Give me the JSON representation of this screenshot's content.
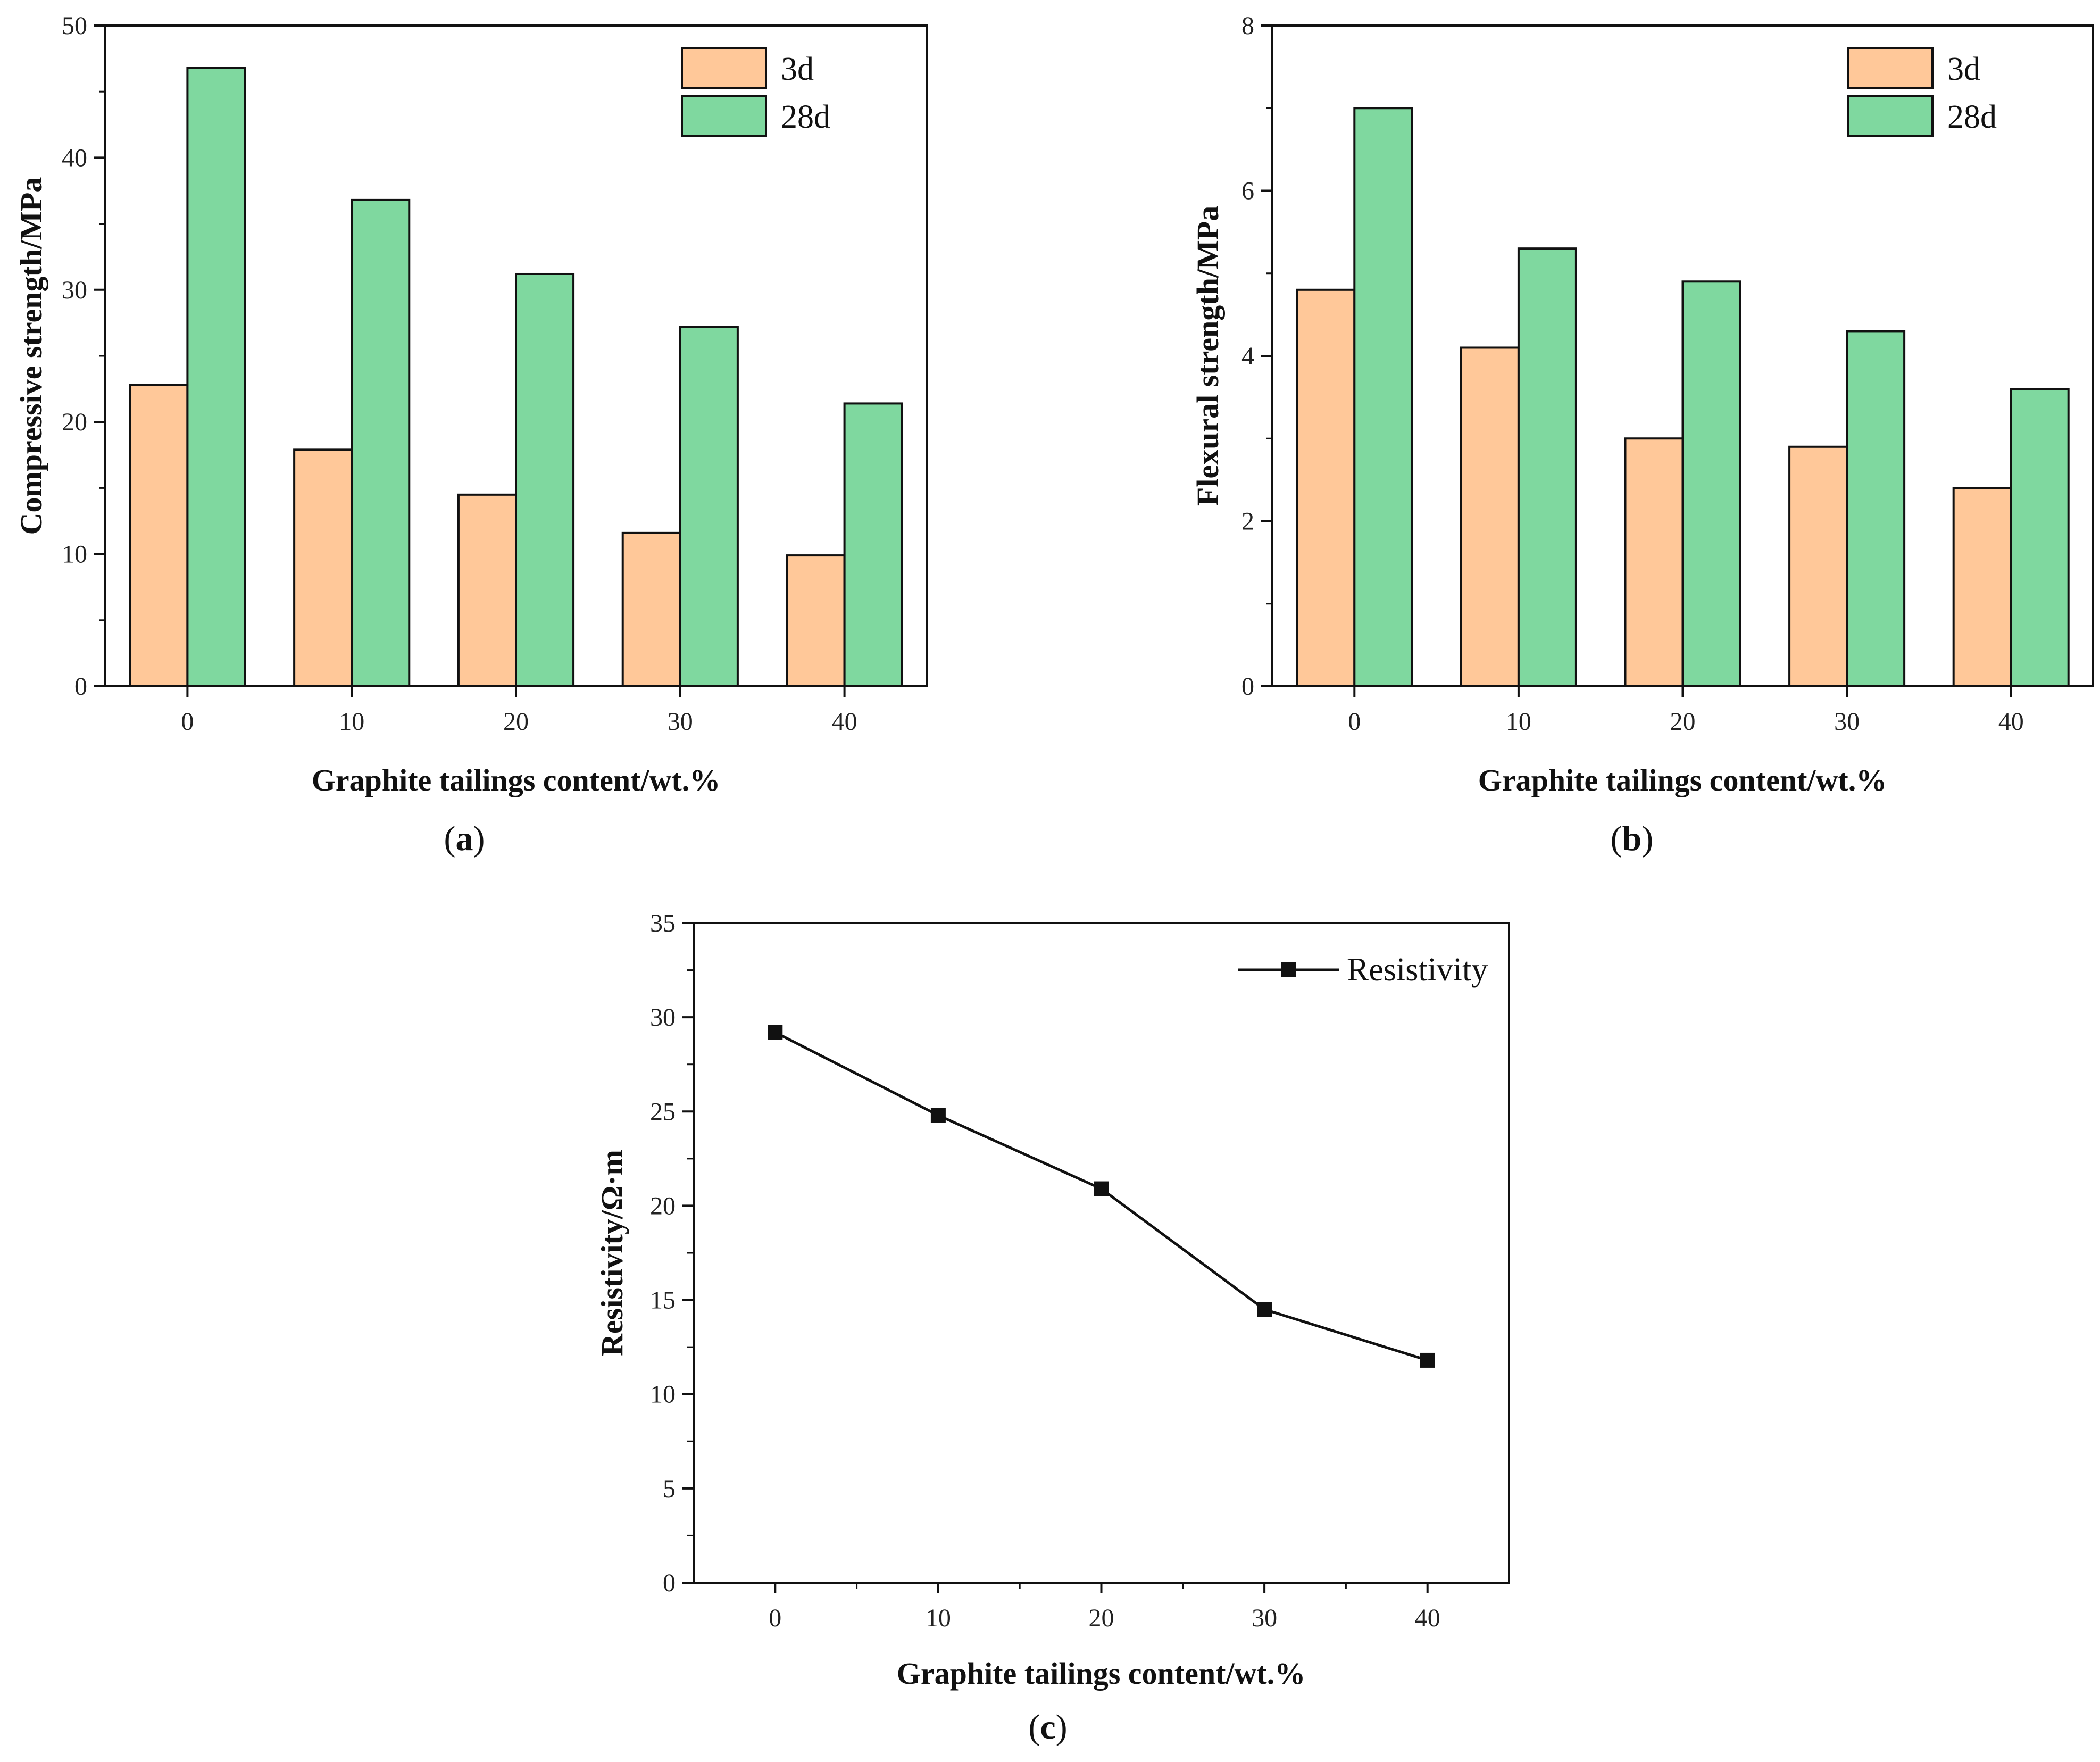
{
  "colors": {
    "series_3d": "#ffc899",
    "series_28d": "#7fd89f",
    "line": "#111111",
    "axis": "#111111"
  },
  "panels": [
    {
      "label_open": "(",
      "label_letter": "a",
      "label_close": ")"
    },
    {
      "label_open": "(",
      "label_letter": "b",
      "label_close": ")"
    },
    {
      "label_open": "(",
      "label_letter": "c",
      "label_close": ")"
    }
  ],
  "chart_data": [
    {
      "type": "bar",
      "xlabel": "Graphite tailings content/wt.%",
      "ylabel": "Compressive strength/MPa",
      "categories": [
        "0",
        "10",
        "20",
        "30",
        "40"
      ],
      "ylim": [
        0,
        50
      ],
      "yticks": [
        0,
        10,
        20,
        30,
        40,
        50
      ],
      "series": [
        {
          "name": "3d",
          "values": [
            22.8,
            17.9,
            14.5,
            11.6,
            9.9
          ]
        },
        {
          "name": "28d",
          "values": [
            46.8,
            36.8,
            31.2,
            27.2,
            21.4
          ]
        }
      ],
      "legend": "top-right",
      "grid": false
    },
    {
      "type": "bar",
      "xlabel": "Graphite tailings content/wt.%",
      "ylabel": "Flexural strength/MPa",
      "categories": [
        "0",
        "10",
        "20",
        "30",
        "40"
      ],
      "ylim": [
        0,
        8
      ],
      "yticks": [
        0,
        2,
        4,
        6,
        8
      ],
      "series": [
        {
          "name": "3d",
          "values": [
            4.8,
            4.1,
            3.0,
            2.9,
            2.4
          ]
        },
        {
          "name": "28d",
          "values": [
            7.0,
            5.3,
            4.9,
            4.3,
            3.6
          ]
        }
      ],
      "legend": "top-right",
      "grid": false
    },
    {
      "type": "line",
      "xlabel": "Graphite tailings content/wt.%",
      "ylabel": "Resistivity/Ω·m",
      "x": [
        0,
        10,
        20,
        30,
        40
      ],
      "xticks": [
        0,
        10,
        20,
        30,
        40
      ],
      "xlim": [
        -5,
        45
      ],
      "ylim": [
        0,
        35
      ],
      "yticks": [
        0,
        5,
        10,
        15,
        20,
        25,
        30,
        35
      ],
      "series": [
        {
          "name": "Resistivity",
          "values": [
            29.2,
            24.8,
            20.9,
            14.5,
            11.8
          ]
        }
      ],
      "legend": "top-right",
      "grid": false
    }
  ]
}
